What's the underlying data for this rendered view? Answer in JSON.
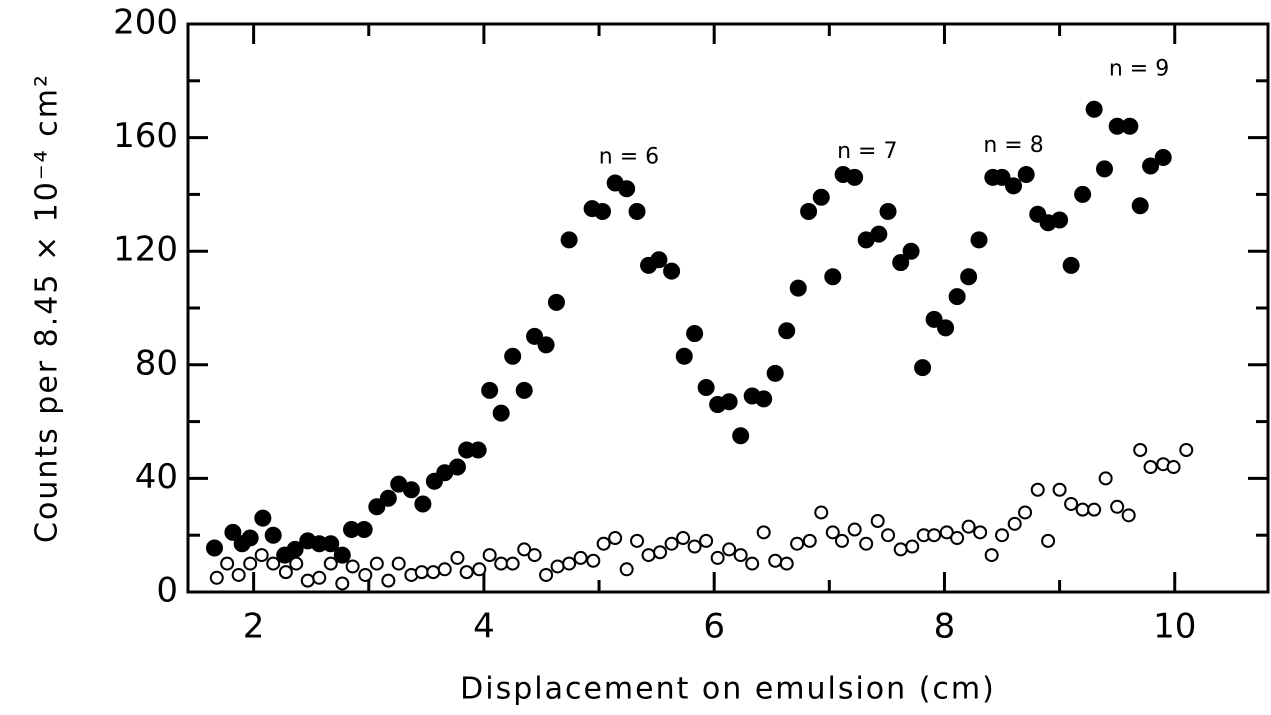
{
  "chart_data": {
    "type": "scatter",
    "xlabel": "Displacement on emulsion (cm)",
    "ylabel": "Counts per 8.45 × 10⁻⁴ cm²",
    "xlim": [
      1.43,
      10.81
    ],
    "ylim": [
      0,
      200
    ],
    "xticks": [
      2,
      4,
      6,
      8,
      10
    ],
    "yticks": [
      0,
      40,
      80,
      120,
      160,
      200
    ],
    "xminorticks": [
      3,
      5,
      7,
      9
    ],
    "yminorticks": [
      20,
      60,
      100,
      140,
      180
    ],
    "annotations": [
      {
        "text": "n = 6",
        "x": 5.26,
        "y": 153
      },
      {
        "text": "n = 7",
        "x": 7.33,
        "y": 155
      },
      {
        "text": "n = 8",
        "x": 8.6,
        "y": 157
      },
      {
        "text": "n = 9",
        "x": 9.69,
        "y": 184
      }
    ],
    "series": [
      {
        "marker": "filled",
        "color": "#000000",
        "x": [
          1.66,
          1.82,
          1.9,
          1.97,
          2.08,
          2.17,
          2.27,
          2.36,
          2.47,
          2.57,
          2.67,
          2.77,
          2.85,
          2.96,
          3.07,
          3.17,
          3.26,
          3.37,
          3.47,
          3.57,
          3.66,
          3.77,
          3.85,
          3.95,
          4.05,
          4.15,
          4.25,
          4.35,
          4.44,
          4.54,
          4.63,
          4.74,
          4.94,
          5.03,
          5.14,
          5.24,
          5.33,
          5.43,
          5.52,
          5.63,
          5.74,
          5.83,
          5.93,
          6.03,
          6.13,
          6.23,
          6.33,
          6.43,
          6.53,
          6.63,
          6.73,
          6.82,
          6.93,
          7.03,
          7.12,
          7.22,
          7.32,
          7.43,
          7.51,
          7.62,
          7.71,
          7.81,
          7.91,
          8.01,
          8.11,
          8.21,
          8.3,
          8.42,
          8.5,
          8.6,
          8.71,
          8.81,
          8.9,
          9.0,
          9.1,
          9.2,
          9.3,
          9.39,
          9.5,
          9.61,
          9.7,
          9.79,
          9.9
        ],
        "values": [
          15.5,
          21,
          17,
          19,
          26,
          20,
          13,
          15,
          18,
          17,
          17,
          13,
          22,
          22,
          30,
          33,
          38,
          36,
          31,
          39,
          42,
          44,
          50,
          50,
          71,
          63,
          83,
          71,
          90,
          87,
          102,
          124,
          135,
          134,
          144,
          142,
          134,
          115,
          117,
          113,
          83,
          91,
          72,
          66,
          67,
          55,
          69,
          68,
          77,
          92,
          107,
          134,
          139,
          111,
          147,
          146,
          124,
          126,
          134,
          116,
          120,
          79,
          96,
          93,
          104,
          111,
          124,
          146,
          146,
          143,
          147,
          133,
          130,
          131,
          115,
          140,
          170,
          149,
          164,
          164,
          136,
          150,
          153
        ]
      },
      {
        "marker": "open",
        "color": "#000000",
        "x": [
          1.68,
          1.77,
          1.87,
          1.97,
          2.07,
          2.17,
          2.28,
          2.37,
          2.47,
          2.57,
          2.67,
          2.77,
          2.86,
          2.97,
          3.07,
          3.17,
          3.26,
          3.37,
          3.46,
          3.56,
          3.66,
          3.77,
          3.85,
          3.96,
          4.05,
          4.15,
          4.25,
          4.35,
          4.44,
          4.54,
          4.64,
          4.74,
          4.84,
          4.95,
          5.04,
          5.14,
          5.24,
          5.33,
          5.43,
          5.53,
          5.63,
          5.73,
          5.83,
          5.93,
          6.03,
          6.13,
          6.23,
          6.33,
          6.43,
          6.53,
          6.63,
          6.72,
          6.83,
          6.93,
          7.03,
          7.11,
          7.22,
          7.32,
          7.42,
          7.51,
          7.62,
          7.72,
          7.82,
          7.91,
          8.02,
          8.11,
          8.21,
          8.31,
          8.41,
          8.5,
          8.61,
          8.7,
          8.81,
          8.9,
          9.0,
          9.1,
          9.2,
          9.3,
          9.4,
          9.5,
          9.6,
          9.7,
          9.79,
          9.9,
          9.99,
          10.1
        ],
        "values": [
          5,
          10,
          6,
          10,
          13,
          10,
          7,
          10,
          4,
          5,
          10,
          3,
          9,
          6,
          10,
          4,
          10,
          6,
          7,
          7,
          8,
          12,
          7,
          8,
          13,
          10,
          10,
          15,
          13,
          6,
          9,
          10,
          12,
          11,
          17,
          19,
          8,
          18,
          13,
          14,
          17,
          19,
          16,
          18,
          12,
          15,
          13,
          10,
          21,
          11,
          10,
          17,
          18,
          28,
          21,
          18,
          22,
          17,
          25,
          20,
          15,
          16,
          20,
          20,
          21,
          19,
          23,
          21,
          13,
          20,
          24,
          28,
          36,
          18,
          36,
          31,
          29,
          29,
          40,
          30,
          27,
          50,
          44,
          45,
          44,
          50
        ]
      }
    ]
  }
}
